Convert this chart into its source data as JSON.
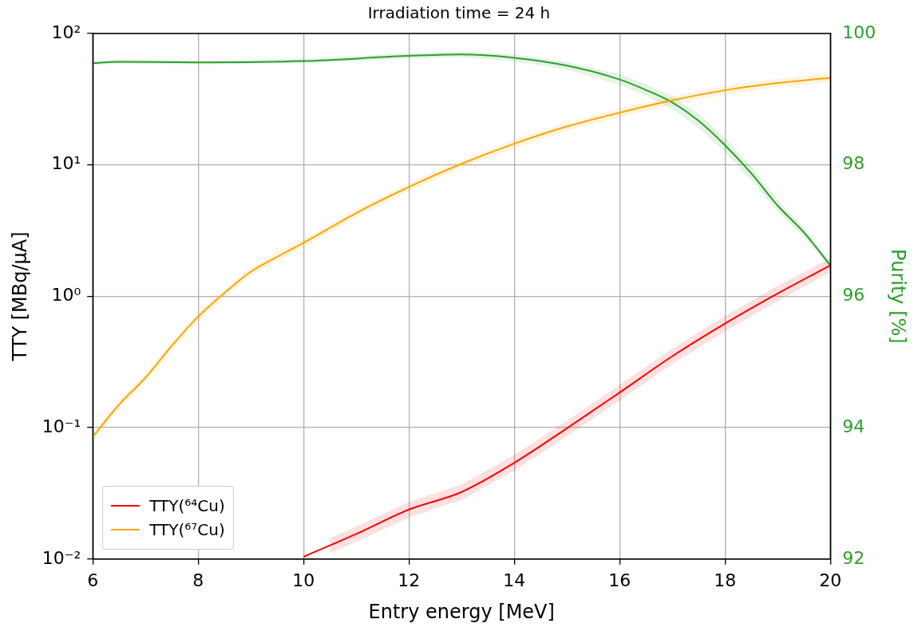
{
  "chart_data": {
    "type": "line",
    "title": "Irradiation time = 24 h",
    "xlabel": "Entry energy [MeV]",
    "ylabel": "TTY [MBq/μA]",
    "y2label": "Purity [%]",
    "xlim": [
      6,
      20
    ],
    "xticks": [
      6,
      8,
      10,
      12,
      14,
      16,
      18,
      20
    ],
    "ylim": [
      0.01,
      100
    ],
    "yticks": [
      {
        "value": 0.01,
        "label": "10⁻²"
      },
      {
        "value": 0.1,
        "label": "10⁻¹"
      },
      {
        "value": 1,
        "label": "10⁰"
      },
      {
        "value": 10,
        "label": "10¹"
      },
      {
        "value": 100,
        "label": "10²"
      }
    ],
    "y2lim": [
      92,
      100
    ],
    "y2ticks": [
      92,
      94,
      96,
      98,
      100
    ],
    "log": "y",
    "grid": true,
    "legend": "bottom left",
    "marker": "none",
    "line_style": "solid",
    "series": [
      {
        "name": "TTY(⁶⁴Cu)",
        "color": "#ff0000",
        "x": [
          10,
          10.5,
          11,
          12,
          13,
          14,
          15,
          16,
          17,
          18,
          19,
          20
        ],
        "values": [
          0.0104,
          0.0127,
          0.0155,
          0.0238,
          0.0324,
          0.054,
          0.099,
          0.185,
          0.35,
          0.62,
          1.05,
          1.72
        ],
        "lower": [
          null,
          0.0111,
          0.0135,
          0.0207,
          0.0283,
          0.047,
          0.086,
          0.161,
          0.305,
          0.54,
          0.92,
          1.52
        ],
        "upper": [
          null,
          0.0145,
          0.0177,
          0.0272,
          0.037,
          0.062,
          0.113,
          0.212,
          0.4,
          0.71,
          1.2,
          1.95
        ]
      },
      {
        "name": "TTY(⁶⁷Cu)",
        "color": "#ffa500",
        "x": [
          6,
          6.5,
          7,
          7.5,
          8,
          8.5,
          9,
          9.5,
          10,
          11,
          12,
          13,
          14,
          15,
          16,
          17,
          18,
          19,
          20
        ],
        "values": [
          0.085,
          0.15,
          0.24,
          0.42,
          0.7,
          1.06,
          1.54,
          2.0,
          2.55,
          4.3,
          6.8,
          10.2,
          14.5,
          19.6,
          25,
          31,
          37,
          42,
          46
        ],
        "lower": [
          0.079,
          0.14,
          0.225,
          0.39,
          0.65,
          0.99,
          1.44,
          1.86,
          2.38,
          4.0,
          6.3,
          9.5,
          13.5,
          18.2,
          23,
          28.8,
          34.3,
          39,
          42.7
        ],
        "upper": [
          0.092,
          0.161,
          0.257,
          0.45,
          0.75,
          1.14,
          1.65,
          2.15,
          2.73,
          4.6,
          7.3,
          10.9,
          15.5,
          21,
          26.9,
          33.3,
          39.8,
          45.2,
          49.5
        ]
      },
      {
        "color": "#2ca02c",
        "axis": "y2",
        "x": [
          6,
          6.5,
          8,
          10,
          12,
          13,
          14,
          15,
          16,
          16.5,
          17,
          17.5,
          18,
          18.5,
          19,
          19.5,
          20
        ],
        "values": [
          99.55,
          99.57,
          99.56,
          99.58,
          99.66,
          99.68,
          99.63,
          99.51,
          99.3,
          99.14,
          98.95,
          98.67,
          98.3,
          97.87,
          97.38,
          96.97,
          96.47
        ],
        "lower": [
          99.52,
          99.54,
          99.53,
          99.55,
          99.62,
          99.64,
          99.58,
          99.45,
          99.22,
          99.05,
          98.85,
          98.56,
          98.19,
          97.77,
          97.29,
          96.9,
          96.42
        ],
        "upper": [
          99.58,
          99.6,
          99.59,
          99.61,
          99.7,
          99.72,
          99.68,
          99.57,
          99.38,
          99.23,
          99.05,
          98.78,
          98.41,
          97.97,
          97.47,
          97.04,
          96.52
        ]
      }
    ]
  }
}
